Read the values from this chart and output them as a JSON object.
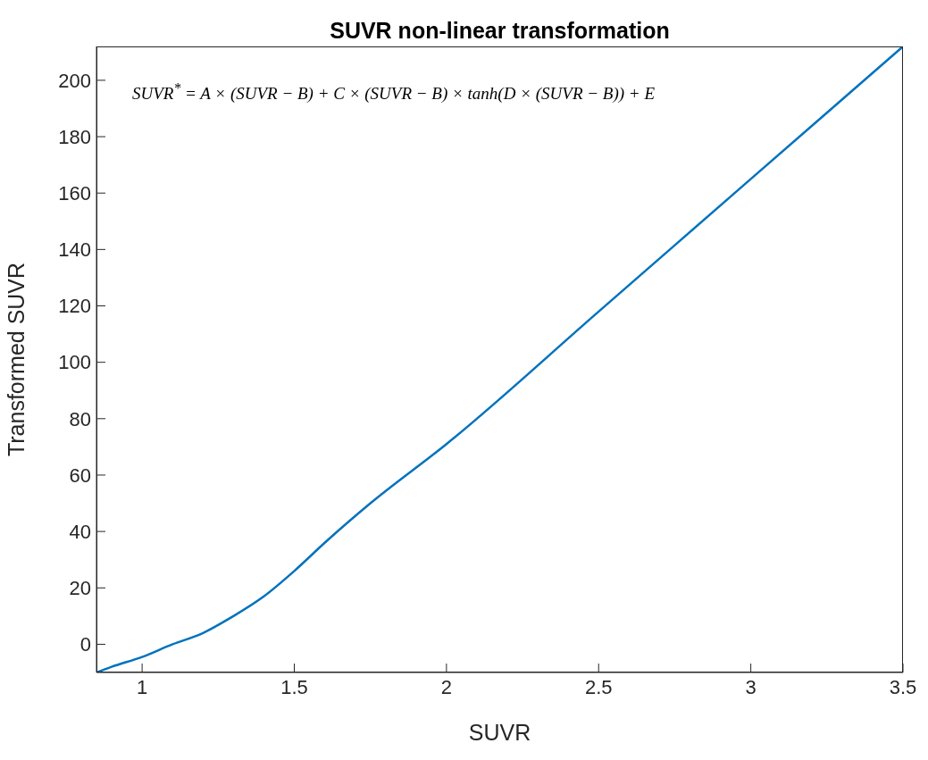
{
  "chart_data": {
    "type": "line",
    "title": "SUVR non-linear transformation",
    "xlabel": "SUVR",
    "ylabel": "Transformed SUVR",
    "annotations": [
      "SUVR$^{*}$ = A × (SUVR − B) + C × (SUVR − B) × tanh(D × (SUVR − B)) + E"
    ],
    "x": [
      0.85,
      0.9,
      1,
      1.1,
      1.2,
      1.3,
      1.4,
      1.5,
      1.6,
      1.75,
      2,
      2.5,
      3,
      3.5
    ],
    "series": [
      {
        "color": "#0072bd",
        "values": [
          -10,
          -8,
          -4.5,
          0,
          4,
          10,
          17,
          26,
          36,
          50,
          71,
          118,
          165,
          212
        ]
      }
    ],
    "xlim": [
      0.85,
      3.5
    ],
    "xticks": [
      1,
      1.5,
      2,
      2.5,
      3,
      3.5
    ],
    "ylim": [
      -10,
      212
    ],
    "yticks": [
      0,
      20,
      40,
      60,
      80,
      100,
      120,
      140,
      160,
      180,
      200
    ],
    "grid": false,
    "marker": "none",
    "line_style": "solid"
  }
}
